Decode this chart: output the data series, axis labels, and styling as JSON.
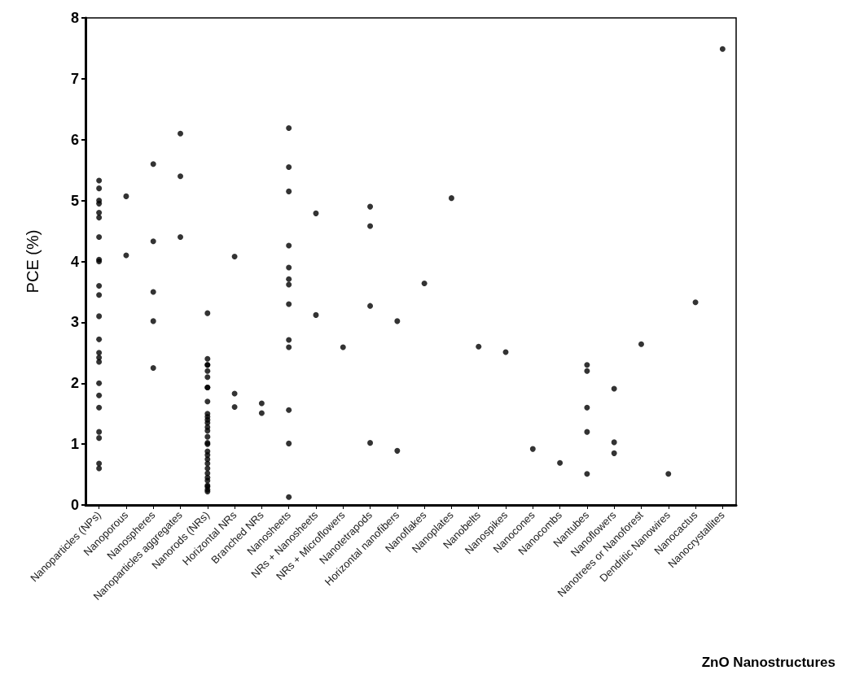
{
  "chart_data": {
    "type": "scatter",
    "xlabel": "ZnO Nanostructures",
    "ylabel": "PCE (%)",
    "categories": [
      "Nanoparticles (NPs)",
      "Nanoporous",
      "Nanospheres",
      "Nanoparticles aggregates",
      "Nanorods (NRs)",
      "Horizontal NRs",
      "Branched NRs",
      "Nanosheets",
      "NRs + Nanosheets",
      "NRs + Microflowers",
      "Nanotetrapods",
      "Horizontal nanofibers",
      "Nanoflakes",
      "Nanoplates",
      "Nanobelts",
      "Nanospikes",
      "Nanocones",
      "Nanocombs",
      "Nantubes",
      "Nanoflowers",
      "Nanotrees or Nanoforest",
      "Dendritic Nanowires",
      "Nanocactus",
      "Nanocrystallites"
    ],
    "series": [
      {
        "color": "#000000",
        "x": [
          "Nanoparticles (NPs)",
          "Nanoparticles (NPs)",
          "Nanoparticles (NPs)",
          "Nanoparticles (NPs)",
          "Nanoparticles (NPs)",
          "Nanoparticles (NPs)",
          "Nanoparticles (NPs)",
          "Nanoparticles (NPs)",
          "Nanoparticles (NPs)",
          "Nanoparticles (NPs)",
          "Nanoparticles (NPs)",
          "Nanoparticles (NPs)",
          "Nanoparticles (NPs)",
          "Nanoparticles (NPs)",
          "Nanoparticles (NPs)",
          "Nanoparticles (NPs)",
          "Nanoparticles (NPs)",
          "Nanoparticles (NPs)",
          "Nanoparticles (NPs)",
          "Nanoparticles (NPs)",
          "Nanoparticles (NPs)",
          "Nanoparticles (NPs)",
          "Nanoparticles (NPs)",
          "Nanoporous",
          "Nanoporous",
          "Nanospheres",
          "Nanospheres",
          "Nanospheres",
          "Nanospheres",
          "Nanospheres",
          "Nanoparticles aggregates",
          "Nanoparticles aggregates",
          "Nanoparticles aggregates",
          "Nanorods (NRs)",
          "Nanorods (NRs)",
          "Nanorods (NRs)",
          "Nanorods (NRs)",
          "Nanorods (NRs)",
          "Nanorods (NRs)",
          "Nanorods (NRs)",
          "Nanorods (NRs)",
          "Nanorods (NRs)",
          "Nanorods (NRs)",
          "Nanorods (NRs)",
          "Nanorods (NRs)",
          "Nanorods (NRs)",
          "Nanorods (NRs)",
          "Nanorods (NRs)",
          "Nanorods (NRs)",
          "Nanorods (NRs)",
          "Nanorods (NRs)",
          "Nanorods (NRs)",
          "Nanorods (NRs)",
          "Nanorods (NRs)",
          "Nanorods (NRs)",
          "Nanorods (NRs)",
          "Nanorods (NRs)",
          "Nanorods (NRs)",
          "Nanorods (NRs)",
          "Nanorods (NRs)",
          "Nanorods (NRs)",
          "Nanorods (NRs)",
          "Nanorods (NRs)",
          "Horizontal NRs",
          "Horizontal NRs",
          "Horizontal NRs",
          "Branched NRs",
          "Branched NRs",
          "Nanosheets",
          "Nanosheets",
          "Nanosheets",
          "Nanosheets",
          "Nanosheets",
          "Nanosheets",
          "Nanosheets",
          "Nanosheets",
          "Nanosheets",
          "Nanosheets",
          "Nanosheets",
          "Nanosheets",
          "Nanosheets",
          "NRs + Nanosheets",
          "NRs + Nanosheets",
          "NRs + Microflowers",
          "Nanotetrapods",
          "Nanotetrapods",
          "Nanotetrapods",
          "Nanotetrapods",
          "Horizontal nanofibers",
          "Horizontal nanofibers",
          "Nanoflakes",
          "Nanoplates",
          "Nanobelts",
          "Nanospikes",
          "Nanocones",
          "Nanocombs",
          "Nantubes",
          "Nantubes",
          "Nantubes",
          "Nantubes",
          "Nantubes",
          "Nanoflowers",
          "Nanoflowers",
          "Nanoflowers",
          "Nanotrees or Nanoforest",
          "Dendritic Nanowires",
          "Nanocactus",
          "Nanocrystallites"
        ],
        "values": [
          5.33,
          5.2,
          5.0,
          4.95,
          4.8,
          4.72,
          4.4,
          4.03,
          4.0,
          3.6,
          3.45,
          3.1,
          2.72,
          2.5,
          2.42,
          2.35,
          2.0,
          1.8,
          1.6,
          1.2,
          1.1,
          0.68,
          0.6,
          5.07,
          4.1,
          5.6,
          4.33,
          3.5,
          3.02,
          2.25,
          6.1,
          5.4,
          4.4,
          2.4,
          2.3,
          1.93,
          1.4,
          1.0,
          0.3,
          0.25,
          3.15,
          2.3,
          2.2,
          2.1,
          1.93,
          1.7,
          1.5,
          1.45,
          1.35,
          1.28,
          1.22,
          1.12,
          1.02,
          0.88,
          0.82,
          0.75,
          0.68,
          0.6,
          0.52,
          0.45,
          0.4,
          0.32,
          0.22,
          4.08,
          1.83,
          1.61,
          1.67,
          1.51,
          5.15,
          3.71,
          3.3,
          6.19,
          5.55,
          4.26,
          3.9,
          3.62,
          2.71,
          2.59,
          1.56,
          1.01,
          0.13,
          4.79,
          3.12,
          2.59,
          4.9,
          4.58,
          3.27,
          1.02,
          3.02,
          0.89,
          3.64,
          5.04,
          2.6,
          2.51,
          0.92,
          0.69,
          2.3,
          2.2,
          1.6,
          1.2,
          0.51,
          1.91,
          1.03,
          0.85,
          2.64,
          0.51,
          3.33,
          7.49
        ]
      }
    ],
    "ylim": [
      0,
      8
    ],
    "yticks": [
      0,
      1,
      2,
      3,
      4,
      5,
      6,
      7,
      8
    ],
    "marker": "circle",
    "grid": false
  }
}
